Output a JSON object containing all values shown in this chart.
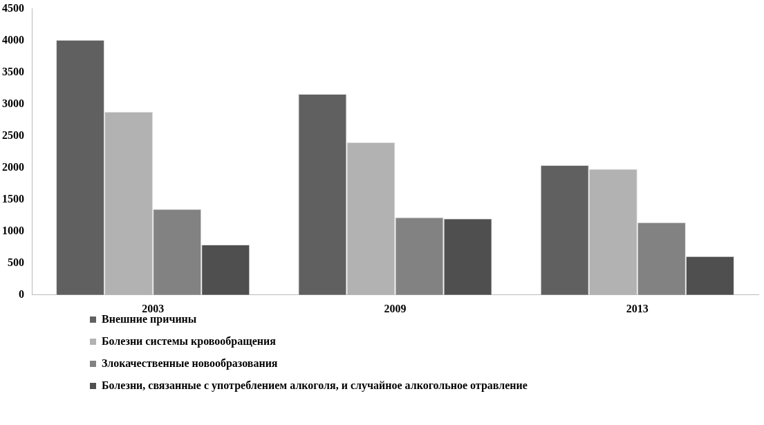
{
  "chart_data": {
    "type": "bar",
    "categories": [
      "2003",
      "2009",
      "2013"
    ],
    "series": [
      {
        "name": "Внешние причины",
        "color": "#606060",
        "values": [
          4010,
          3160,
          2040
        ]
      },
      {
        "name": "Болезни системы кровообращения",
        "color": "#b2b2b2",
        "values": [
          2880,
          2400,
          1980
        ]
      },
      {
        "name": "Злокачественные новообразования",
        "color": "#828282",
        "values": [
          1350,
          1220,
          1140
        ]
      },
      {
        "name": "Болезни, связанные с употреблением алкоголя, и случайное алкогольное отравление",
        "color": "#4f4f4f",
        "values": [
          790,
          1200,
          610
        ]
      }
    ],
    "ylim": [
      0,
      4500
    ],
    "yticks": [
      0,
      500,
      1000,
      1500,
      2000,
      2500,
      3000,
      3500,
      4000,
      4500
    ],
    "grid": false,
    "legend": "bottom left"
  }
}
